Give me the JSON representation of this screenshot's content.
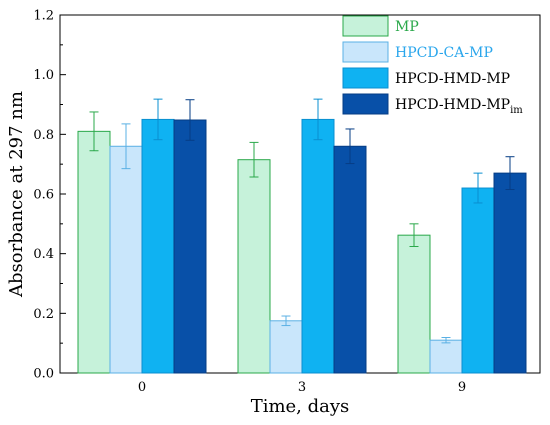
{
  "chart_data": {
    "type": "bar",
    "title": "",
    "xlabel": "Time, days",
    "ylabel": "Absorbance at 297 nm",
    "categories": [
      "0",
      "3",
      "9"
    ],
    "ylim": [
      0.0,
      1.2
    ],
    "yticks": [
      "0.0",
      "0.2",
      "0.4",
      "0.6",
      "0.8",
      "1.0",
      "1.2"
    ],
    "grid": false,
    "legend_position": "top-right",
    "series": [
      {
        "name": "MP",
        "legend_parts": [
          [
            "MP",
            "normal"
          ]
        ],
        "values": [
          0.81,
          0.715,
          0.462
        ],
        "errors": [
          0.065,
          0.058,
          0.038
        ],
        "fill": "#c6f2da",
        "stroke": "#2aa84a",
        "text_color": "#2aa84a"
      },
      {
        "name": "HPCD-CA-MP",
        "legend_parts": [
          [
            "HPCD-CA-MP",
            "normal"
          ]
        ],
        "values": [
          0.76,
          0.175,
          0.11
        ],
        "errors": [
          0.075,
          0.016,
          0.009
        ],
        "fill": "#c9e6fb",
        "stroke": "#5ab0e4",
        "text_color": "#2aa6ec"
      },
      {
        "name": "HPCD-HMD-MP",
        "legend_parts": [
          [
            "HPCD-HMD-MP",
            "normal"
          ]
        ],
        "values": [
          0.85,
          0.85,
          0.62
        ],
        "errors": [
          0.068,
          0.068,
          0.05
        ],
        "fill": "#0fb2f2",
        "stroke": "#0a8fd0",
        "text_color": "#000000"
      },
      {
        "name": "HPCD-HMD-MPim",
        "legend_parts": [
          [
            "HPCD-HMD-MP",
            "normal"
          ],
          [
            "im",
            "sub"
          ]
        ],
        "values": [
          0.848,
          0.76,
          0.67
        ],
        "errors": [
          0.068,
          0.058,
          0.055
        ],
        "fill": "#0850a8",
        "stroke": "#063d85",
        "text_color": "#000000"
      }
    ]
  }
}
